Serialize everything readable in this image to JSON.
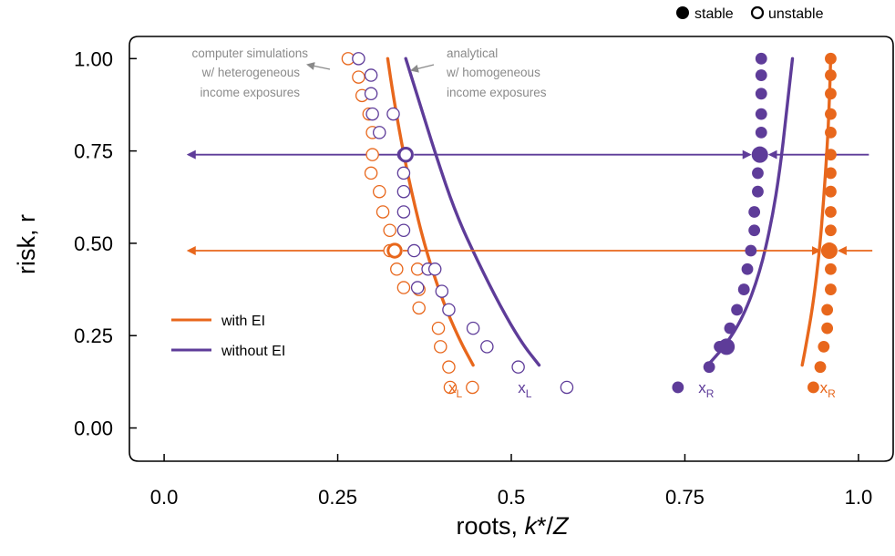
{
  "chart_data": {
    "type": "scatter",
    "xlabel": "roots, k*/Z",
    "ylabel": "risk, r",
    "xlim": [
      -0.05,
      1.05
    ],
    "ylim": [
      -0.09,
      1.06
    ],
    "x_ticks": [
      0,
      0.25,
      0.5,
      0.75,
      1
    ],
    "x_tick_labels": [
      "0.0",
      "0.25",
      "0.5",
      "0.75",
      "1.0"
    ],
    "y_ticks": [
      0,
      0.25,
      0.5,
      0.75,
      1
    ],
    "y_tick_labels": [
      "0.00",
      "0.25",
      "0.50",
      "0.75",
      "1.00"
    ],
    "colors": {
      "with_EI": "#E8671C",
      "without_EI": "#5E3C99"
    },
    "marker_legend": {
      "stable": "stable",
      "unstable": "unstable"
    },
    "series_legend": [
      {
        "label": "with EI",
        "color": "#E8671C"
      },
      {
        "label": "without EI",
        "color": "#5E3C99"
      }
    ],
    "annotations": {
      "simulations": [
        "computer simulations",
        "w/ heterogeneous",
        "income exposures"
      ],
      "analytical": [
        "analytical",
        "w/ homogeneous",
        "income exposures"
      ]
    },
    "root_labels": [
      {
        "main": "x",
        "sub": "L",
        "x": 0.42,
        "y": 0.11,
        "color": "#E8671C"
      },
      {
        "main": "x",
        "sub": "L",
        "x": 0.52,
        "y": 0.11,
        "color": "#5E3C99"
      },
      {
        "main": "x",
        "sub": "R",
        "x": 0.78,
        "y": 0.11,
        "color": "#5E3C99"
      },
      {
        "main": "x",
        "sub": "R",
        "x": 0.955,
        "y": 0.11,
        "color": "#E8671C"
      }
    ],
    "curves": [
      {
        "name": "with EI",
        "color": "#E8671C",
        "x": [
          0.322,
          0.33,
          0.341,
          0.356,
          0.377,
          0.402,
          0.425,
          0.445
        ],
        "y": [
          1.0,
          0.9,
          0.78,
          0.64,
          0.48,
          0.34,
          0.24,
          0.17
        ]
      },
      {
        "name": "without EI",
        "color": "#5E3C99",
        "x": [
          0.348,
          0.368,
          0.391,
          0.42,
          0.452,
          0.484,
          0.515,
          0.54
        ],
        "y": [
          1.0,
          0.88,
          0.74,
          0.58,
          0.45,
          0.33,
          0.23,
          0.17
        ]
      },
      {
        "name": "with EI",
        "color": "#E8671C",
        "x": [
          0.919,
          0.926,
          0.935,
          0.944,
          0.95,
          0.955,
          0.958,
          0.96
        ],
        "y": [
          0.17,
          0.24,
          0.34,
          0.48,
          0.62,
          0.76,
          0.88,
          1.0
        ]
      },
      {
        "name": "without EI",
        "color": "#5E3C99",
        "x": [
          0.783,
          0.807,
          0.834,
          0.858,
          0.875,
          0.887,
          0.896,
          0.905
        ],
        "y": [
          0.17,
          0.22,
          0.3,
          0.42,
          0.56,
          0.7,
          0.85,
          1.0
        ]
      }
    ],
    "unstable_points": [
      {
        "series": "with EI",
        "color": "#E8671C",
        "x": [
          0.265,
          0.28,
          0.285,
          0.295,
          0.3,
          0.3,
          0.298,
          0.31,
          0.315,
          0.325,
          0.325,
          0.335,
          0.345,
          0.365,
          0.367,
          0.367,
          0.395,
          0.398,
          0.41,
          0.412,
          0.444
        ],
        "y": [
          1.0,
          0.95,
          0.9,
          0.85,
          0.8,
          0.74,
          0.69,
          0.64,
          0.585,
          0.535,
          0.48,
          0.43,
          0.38,
          0.43,
          0.375,
          0.325,
          0.27,
          0.22,
          0.165,
          0.11,
          0.11
        ]
      },
      {
        "series": "without EI",
        "color": "#5E3C99",
        "x": [
          0.28,
          0.298,
          0.298,
          0.3,
          0.33,
          0.31,
          0.345,
          0.345,
          0.345,
          0.345,
          0.345,
          0.36,
          0.38,
          0.39,
          0.4,
          0.41,
          0.445,
          0.465,
          0.51,
          0.58,
          0.365
        ],
        "y": [
          1.0,
          0.955,
          0.905,
          0.85,
          0.85,
          0.8,
          0.74,
          0.69,
          0.64,
          0.585,
          0.535,
          0.48,
          0.43,
          0.43,
          0.37,
          0.32,
          0.27,
          0.22,
          0.165,
          0.11,
          0.38
        ]
      }
    ],
    "stable_points": [
      {
        "series": "with EI",
        "color": "#E8671C",
        "x": [
          0.96,
          0.96,
          0.96,
          0.96,
          0.96,
          0.96,
          0.96,
          0.96,
          0.96,
          0.96,
          0.96,
          0.96,
          0.96,
          0.955,
          0.955,
          0.95,
          0.945,
          0.935
        ],
        "y": [
          1.0,
          0.955,
          0.905,
          0.85,
          0.8,
          0.74,
          0.69,
          0.64,
          0.585,
          0.535,
          0.48,
          0.43,
          0.375,
          0.32,
          0.27,
          0.22,
          0.165,
          0.11
        ]
      },
      {
        "series": "without EI",
        "color": "#5E3C99",
        "x": [
          0.86,
          0.86,
          0.86,
          0.86,
          0.86,
          0.86,
          0.855,
          0.855,
          0.85,
          0.85,
          0.845,
          0.84,
          0.835,
          0.825,
          0.815,
          0.8,
          0.785,
          0.74
        ],
        "y": [
          1.0,
          0.955,
          0.905,
          0.85,
          0.8,
          0.74,
          0.69,
          0.64,
          0.585,
          0.535,
          0.48,
          0.43,
          0.375,
          0.32,
          0.27,
          0.22,
          0.165,
          0.11
        ]
      }
    ],
    "highlight_points": [
      {
        "kind": "unstable",
        "color": "#5E3C99",
        "x": 0.348,
        "y": 0.74
      },
      {
        "kind": "stable",
        "color": "#5E3C99",
        "x": 0.858,
        "y": 0.74
      },
      {
        "kind": "unstable",
        "color": "#E8671C",
        "x": 0.332,
        "y": 0.48
      },
      {
        "kind": "stable",
        "color": "#E8671C",
        "x": 0.958,
        "y": 0.48
      },
      {
        "kind": "stable",
        "color": "#5E3C99",
        "x": 0.81,
        "y": 0.22
      }
    ],
    "flow_arrows": [
      {
        "color": "#5E3C99",
        "y": 0.74,
        "x_left": 0.035,
        "x_unstable": 0.348,
        "x_stable": 0.858,
        "x_right": 1.015
      },
      {
        "color": "#E8671C",
        "y": 0.48,
        "x_left": 0.035,
        "x_unstable": 0.332,
        "x_stable": 0.958,
        "x_right": 1.02
      }
    ]
  }
}
